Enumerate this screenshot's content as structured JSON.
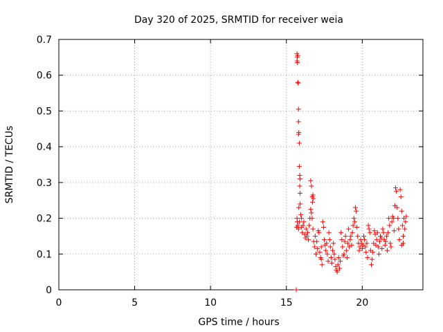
{
  "chart_data": {
    "type": "scatter",
    "title": "Day 320 of 2025, SRMTID for receiver weia",
    "xlabel": "GPS time / hours",
    "ylabel": "SRMTID / TECUs",
    "xlim": [
      0,
      24
    ],
    "ylim": [
      0,
      0.7
    ],
    "xticks": [
      0,
      5,
      10,
      15,
      20
    ],
    "yticks": [
      0,
      0.1,
      0.2,
      0.3,
      0.4,
      0.5,
      0.6,
      0.7
    ],
    "xtick_labels": [
      "0",
      "5",
      "10",
      "15",
      "20"
    ],
    "ytick_labels": [
      "0",
      "0.1",
      "0.2",
      "0.3",
      "0.4",
      "0.5",
      "0.6",
      "0.7"
    ],
    "grid": true,
    "marker": "+",
    "color": "#ff0000",
    "series": [
      {
        "name": "SRMTID",
        "points": [
          [
            15.65,
            0.0
          ],
          [
            15.7,
            0.66
          ],
          [
            15.72,
            0.65
          ],
          [
            15.7,
            0.64
          ],
          [
            15.73,
            0.635
          ],
          [
            15.75,
            0.655
          ],
          [
            15.75,
            0.58
          ],
          [
            15.78,
            0.578
          ],
          [
            15.8,
            0.505
          ],
          [
            15.8,
            0.47
          ],
          [
            15.82,
            0.44
          ],
          [
            15.8,
            0.435
          ],
          [
            15.85,
            0.41
          ],
          [
            15.85,
            0.345
          ],
          [
            15.88,
            0.32
          ],
          [
            15.9,
            0.31
          ],
          [
            15.88,
            0.29
          ],
          [
            15.9,
            0.27
          ],
          [
            15.82,
            0.23
          ],
          [
            15.9,
            0.24
          ],
          [
            15.7,
            0.2
          ],
          [
            15.72,
            0.19
          ],
          [
            15.68,
            0.175
          ],
          [
            15.75,
            0.18
          ],
          [
            15.8,
            0.17
          ],
          [
            15.85,
            0.19
          ],
          [
            15.95,
            0.21
          ],
          [
            16.0,
            0.2
          ],
          [
            16.0,
            0.175
          ],
          [
            16.05,
            0.16
          ],
          [
            16.1,
            0.18
          ],
          [
            16.15,
            0.19
          ],
          [
            16.2,
            0.155
          ],
          [
            16.25,
            0.145
          ],
          [
            16.3,
            0.17
          ],
          [
            16.35,
            0.15
          ],
          [
            16.4,
            0.16
          ],
          [
            16.45,
            0.14
          ],
          [
            16.5,
            0.18
          ],
          [
            16.55,
            0.2
          ],
          [
            16.6,
            0.305
          ],
          [
            16.65,
            0.29
          ],
          [
            16.7,
            0.26
          ],
          [
            16.75,
            0.265
          ],
          [
            16.72,
            0.245
          ],
          [
            16.78,
            0.255
          ],
          [
            16.6,
            0.225
          ],
          [
            16.65,
            0.215
          ],
          [
            16.7,
            0.2
          ],
          [
            16.75,
            0.17
          ],
          [
            16.8,
            0.135
          ],
          [
            16.85,
            0.12
          ],
          [
            16.9,
            0.15
          ],
          [
            16.95,
            0.1
          ],
          [
            17.0,
            0.135
          ],
          [
            17.05,
            0.115
          ],
          [
            17.1,
            0.165
          ],
          [
            17.15,
            0.16
          ],
          [
            17.2,
            0.105
          ],
          [
            17.25,
            0.09
          ],
          [
            17.3,
            0.085
          ],
          [
            17.3,
            0.12
          ],
          [
            17.35,
            0.07
          ],
          [
            17.4,
            0.19
          ],
          [
            17.45,
            0.175
          ],
          [
            17.5,
            0.14
          ],
          [
            17.55,
            0.125
          ],
          [
            17.6,
            0.11
          ],
          [
            17.65,
            0.13
          ],
          [
            17.7,
            0.1
          ],
          [
            17.75,
            0.08
          ],
          [
            17.8,
            0.16
          ],
          [
            17.85,
            0.14
          ],
          [
            17.9,
            0.12
          ],
          [
            17.95,
            0.09
          ],
          [
            18.0,
            0.075
          ],
          [
            18.05,
            0.11
          ],
          [
            18.1,
            0.13
          ],
          [
            18.15,
            0.1
          ],
          [
            18.2,
            0.085
          ],
          [
            18.25,
            0.065
          ],
          [
            18.3,
            0.055
          ],
          [
            18.35,
            0.05
          ],
          [
            18.4,
            0.07
          ],
          [
            18.45,
            0.09
          ],
          [
            18.5,
            0.06
          ],
          [
            18.55,
            0.08
          ],
          [
            18.6,
            0.16
          ],
          [
            18.65,
            0.14
          ],
          [
            18.7,
            0.12
          ],
          [
            18.75,
            0.095
          ],
          [
            18.8,
            0.1
          ],
          [
            18.85,
            0.135
          ],
          [
            18.9,
            0.15
          ],
          [
            18.95,
            0.11
          ],
          [
            19.0,
            0.09
          ],
          [
            19.05,
            0.13
          ],
          [
            19.1,
            0.17
          ],
          [
            19.15,
            0.12
          ],
          [
            19.2,
            0.14
          ],
          [
            19.25,
            0.15
          ],
          [
            19.3,
            0.125
          ],
          [
            19.35,
            0.16
          ],
          [
            19.4,
            0.18
          ],
          [
            19.45,
            0.2
          ],
          [
            19.5,
            0.19
          ],
          [
            19.55,
            0.23
          ],
          [
            19.6,
            0.22
          ],
          [
            19.65,
            0.175
          ],
          [
            19.7,
            0.15
          ],
          [
            19.75,
            0.13
          ],
          [
            19.8,
            0.11
          ],
          [
            19.85,
            0.12
          ],
          [
            19.9,
            0.14
          ],
          [
            19.95,
            0.13
          ],
          [
            20.0,
            0.115
          ],
          [
            20.05,
            0.125
          ],
          [
            20.1,
            0.15
          ],
          [
            20.15,
            0.14
          ],
          [
            20.2,
            0.12
          ],
          [
            20.25,
            0.105
          ],
          [
            20.3,
            0.13
          ],
          [
            20.35,
            0.09
          ],
          [
            20.4,
            0.18
          ],
          [
            20.45,
            0.17
          ],
          [
            20.5,
            0.16
          ],
          [
            20.55,
            0.11
          ],
          [
            20.6,
            0.07
          ],
          [
            20.65,
            0.085
          ],
          [
            20.7,
            0.105
          ],
          [
            20.75,
            0.13
          ],
          [
            20.8,
            0.165
          ],
          [
            20.85,
            0.155
          ],
          [
            20.9,
            0.125
          ],
          [
            20.95,
            0.14
          ],
          [
            21.0,
            0.16
          ],
          [
            21.05,
            0.12
          ],
          [
            21.1,
            0.1
          ],
          [
            21.15,
            0.135
          ],
          [
            21.2,
            0.15
          ],
          [
            21.25,
            0.145
          ],
          [
            21.3,
            0.115
          ],
          [
            21.35,
            0.17
          ],
          [
            21.4,
            0.16
          ],
          [
            21.45,
            0.14
          ],
          [
            21.5,
            0.125
          ],
          [
            21.55,
            0.135
          ],
          [
            21.6,
            0.15
          ],
          [
            21.65,
            0.11
          ],
          [
            21.7,
            0.16
          ],
          [
            21.75,
            0.2
          ],
          [
            21.8,
            0.18
          ],
          [
            21.85,
            0.13
          ],
          [
            21.9,
            0.12
          ],
          [
            21.95,
            0.19
          ],
          [
            22.0,
            0.205
          ],
          [
            22.05,
            0.2
          ],
          [
            22.1,
            0.165
          ],
          [
            22.15,
            0.235
          ],
          [
            22.2,
            0.285
          ],
          [
            22.25,
            0.275
          ],
          [
            22.3,
            0.23
          ],
          [
            22.35,
            0.2
          ],
          [
            22.4,
            0.17
          ],
          [
            22.45,
            0.14
          ],
          [
            22.5,
            0.28
          ],
          [
            22.55,
            0.26
          ],
          [
            22.6,
            0.22
          ],
          [
            22.65,
            0.18
          ],
          [
            22.7,
            0.15
          ],
          [
            22.75,
            0.2
          ],
          [
            22.8,
            0.17
          ],
          [
            22.85,
            0.19
          ],
          [
            22.9,
            0.205
          ],
          [
            22.6,
            0.125
          ],
          [
            22.7,
            0.13
          ]
        ]
      }
    ]
  }
}
